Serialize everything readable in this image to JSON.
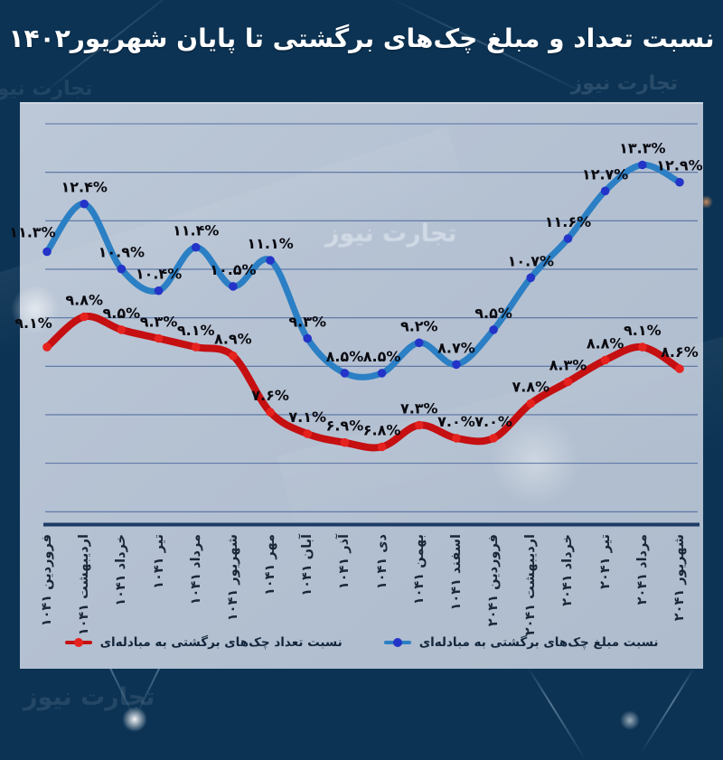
{
  "title": "نسبت تعداد و مبلغ چک‌های برگشتی تا پایان شهریور۱۴۰۲",
  "watermark": "تجارت نیوز",
  "legend": {
    "count_series_label": "نسبت تعداد چک‌های برگشتی به مبادله‌ای",
    "amount_series_label": "نسبت مبلغ چک‌های برگشتی به مبادله‌ای"
  },
  "colors": {
    "background": "#11456a",
    "panel": "#b4c1d2",
    "gridline": "#46639a",
    "axis": "#1d3b66",
    "amount_line": "#2b7fc4",
    "amount_marker": "#2433c8",
    "count_line": "#c50f11",
    "count_marker": "#e6221f",
    "label_text": "#0a0a10",
    "title_text": "#ffffff"
  },
  "chart_data": {
    "type": "line",
    "categories": [
      "فروردین ۱۴۰۱",
      "اردیبهشت ۱۴۰۱",
      "خرداد ۱۴۰۱",
      "تیر ۱۴۰۱",
      "مرداد ۱۴۰۱",
      "شهریور ۱۴۰۱",
      "مهر ۱۴۰۱",
      "آبان ۱۴۰۱",
      "آذر ۱۴۰۱",
      "دی ۱۴۰۱",
      "بهمن ۱۴۰۱",
      "اسفند ۱۴۰۱",
      "فروردین ۱۴۰۲",
      "اردیبهشت ۱۴۰۲",
      "خرداد ۱۴۰۲",
      "تیر ۱۴۰۲",
      "مرداد ۱۴۰۲",
      "شهریور ۱۴۰۲"
    ],
    "series": [
      {
        "key": "amount",
        "name": "نسبت مبلغ چک‌های برگشتی به مبادله‌ای",
        "color": "#2b7fc4",
        "marker_color": "#2433c8",
        "values": [
          11.3,
          12.4,
          10.9,
          10.4,
          11.4,
          10.5,
          11.1,
          9.3,
          8.5,
          8.5,
          9.2,
          8.7,
          9.5,
          10.7,
          11.6,
          12.7,
          13.3,
          12.9
        ],
        "labels": [
          "۱۱.۳%",
          "۱۲.۴%",
          "۱۰.۹%",
          "۱۰.۴%",
          "۱۱.۴%",
          "۱۰.۵%",
          "۱۱.۱%",
          "۹.۳%",
          "۸.۵%",
          "۸.۵%",
          "۹.۲%",
          "۸.۷%",
          "۹.۵%",
          "۱۰.۷%",
          "۱۱.۶%",
          "۱۲.۷%",
          "۱۳.۳%",
          "۱۲.۹%"
        ]
      },
      {
        "key": "count",
        "name": "نسبت تعداد چک‌های برگشتی به مبادله‌ای",
        "color": "#c50f11",
        "marker_color": "#e6221f",
        "values": [
          9.1,
          9.8,
          9.5,
          9.3,
          9.1,
          8.9,
          7.6,
          7.1,
          6.9,
          6.8,
          7.3,
          7.0,
          7.0,
          7.8,
          8.3,
          8.8,
          9.1,
          8.6
        ],
        "labels": [
          "۹.۱%",
          "۹.۸%",
          "۹.۵%",
          "۹.۳%",
          "۹.۱%",
          "۸.۹%",
          "۷.۶%",
          "۷.۱%",
          "۶.۹%",
          "۶.۸%",
          "۷.۳%",
          "۷.۰%",
          "۷.۰%",
          "۷.۸%",
          "۸.۳%",
          "۸.۸%",
          "۹.۱%",
          "۸.۶%"
        ]
      }
    ],
    "xlabel": "",
    "ylabel": "",
    "ylim": [
      5.0,
      14.3
    ],
    "grid": "horizontal",
    "y_axis_labels_visible": false,
    "legend_position": "bottom-inside",
    "data_labels": "all-points"
  }
}
